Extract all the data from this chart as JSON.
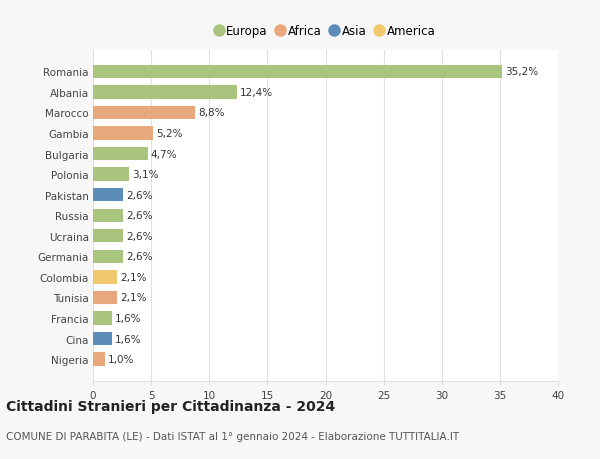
{
  "countries": [
    "Romania",
    "Albania",
    "Marocco",
    "Gambia",
    "Bulgaria",
    "Polonia",
    "Pakistan",
    "Russia",
    "Ucraina",
    "Germania",
    "Colombia",
    "Tunisia",
    "Francia",
    "Cina",
    "Nigeria"
  ],
  "values": [
    35.2,
    12.4,
    8.8,
    5.2,
    4.7,
    3.1,
    2.6,
    2.6,
    2.6,
    2.6,
    2.1,
    2.1,
    1.6,
    1.6,
    1.0
  ],
  "labels": [
    "35,2%",
    "12,4%",
    "8,8%",
    "5,2%",
    "4,7%",
    "3,1%",
    "2,6%",
    "2,6%",
    "2,6%",
    "2,6%",
    "2,1%",
    "2,1%",
    "1,6%",
    "1,6%",
    "1,0%"
  ],
  "continents": [
    "Europa",
    "Europa",
    "Africa",
    "Africa",
    "Europa",
    "Europa",
    "Asia",
    "Europa",
    "Europa",
    "Europa",
    "America",
    "Africa",
    "Europa",
    "Asia",
    "Africa"
  ],
  "continent_colors": {
    "Europa": "#a8c47e",
    "Africa": "#e8a87c",
    "Asia": "#5b8db8",
    "America": "#f0c96e"
  },
  "legend_order": [
    "Europa",
    "Africa",
    "Asia",
    "America"
  ],
  "title": "Cittadini Stranieri per Cittadinanza - 2024",
  "subtitle": "COMUNE DI PARABITA (LE) - Dati ISTAT al 1° gennaio 2024 - Elaborazione TUTTITALIA.IT",
  "xlim": [
    0,
    40
  ],
  "xticks": [
    0,
    5,
    10,
    15,
    20,
    25,
    30,
    35,
    40
  ],
  "bg_color": "#f7f7f7",
  "bar_bg_color": "#ffffff",
  "grid_color": "#e0e0e0",
  "title_fontsize": 10,
  "subtitle_fontsize": 7.5,
  "label_fontsize": 7.5,
  "tick_fontsize": 7.5,
  "legend_fontsize": 8.5
}
